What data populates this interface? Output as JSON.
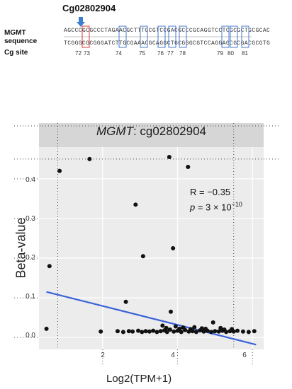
{
  "header": {
    "probe": "Cg02802904",
    "row_labels": [
      "MGMT",
      "sequence",
      "Cg site"
    ],
    "seq_top": "AGCCCGCGCCCTAGAACGCTTTGCGTCCGACGCCCGCAGGTCCTCGCGCTGCGCAC",
    "seq_bottom": "TCGGGCGCGGGATCTTGCGAAACGCAGGCTGCGGGCGTCCAGGAGCGCGACGCGTG",
    "cg_sites": [
      "72",
      "73",
      "74",
      "75",
      "76",
      "77",
      "78",
      "79",
      "80",
      "81"
    ]
  },
  "colors": {
    "arrow": "#3b7fd0",
    "box": "#4a7bd0",
    "highlight": "#d83a3a",
    "line": "#3b63d8",
    "point": "#111111"
  },
  "chart_data": {
    "type": "scatter",
    "title": "MGMT: cg02802904",
    "title_gene": "MGMT",
    "title_probe": ": cg02802904",
    "xlabel": "Log2(TPM+1)",
    "ylabel": "Beta-value",
    "xlim": [
      0.3,
      6.3
    ],
    "ylim": [
      -0.03,
      0.48
    ],
    "xticks": [
      "2",
      "4",
      "6"
    ],
    "xtick_values": [
      2,
      4,
      6
    ],
    "yticks": [
      "0.0",
      "0.1",
      "0.2",
      "0.3",
      "0.4"
    ],
    "ytick_values": [
      0.0,
      0.1,
      0.2,
      0.3,
      0.4
    ],
    "grid": true,
    "annotation_r": "R = −0.35",
    "annotation_p_label": "p",
    "annotation_p_value": " = 3 × 10",
    "annotation_p_exp": "−10",
    "points": [
      [
        0.85,
        0.42
      ],
      [
        1.65,
        0.45
      ],
      [
        3.78,
        0.455
      ],
      [
        4.28,
        0.43
      ],
      [
        2.88,
        0.335
      ],
      [
        0.58,
        0.18
      ],
      [
        3.08,
        0.205
      ],
      [
        3.88,
        0.225
      ],
      [
        2.62,
        0.09
      ],
      [
        3.82,
        0.065
      ],
      [
        0.5,
        0.022
      ],
      [
        1.95,
        0.015
      ],
      [
        2.4,
        0.016
      ],
      [
        2.55,
        0.014
      ],
      [
        2.7,
        0.016
      ],
      [
        2.8,
        0.015
      ],
      [
        2.95,
        0.017
      ],
      [
        3.05,
        0.014
      ],
      [
        3.15,
        0.016
      ],
      [
        3.25,
        0.015
      ],
      [
        3.35,
        0.017
      ],
      [
        3.45,
        0.014
      ],
      [
        3.55,
        0.016
      ],
      [
        3.65,
        0.018
      ],
      [
        3.72,
        0.014
      ],
      [
        3.8,
        0.02
      ],
      [
        3.9,
        0.015
      ],
      [
        4.0,
        0.017
      ],
      [
        4.1,
        0.014
      ],
      [
        4.2,
        0.019
      ],
      [
        4.3,
        0.015
      ],
      [
        4.4,
        0.016
      ],
      [
        4.5,
        0.014
      ],
      [
        4.6,
        0.018
      ],
      [
        4.7,
        0.015
      ],
      [
        4.8,
        0.017
      ],
      [
        4.9,
        0.014
      ],
      [
        5.0,
        0.016
      ],
      [
        5.1,
        0.015
      ],
      [
        5.2,
        0.017
      ],
      [
        5.3,
        0.014
      ],
      [
        5.4,
        0.016
      ],
      [
        5.5,
        0.015
      ],
      [
        5.6,
        0.017
      ],
      [
        5.75,
        0.015
      ],
      [
        5.9,
        0.014
      ],
      [
        6.05,
        0.016
      ],
      [
        3.6,
        0.03
      ],
      [
        3.95,
        0.028
      ],
      [
        4.15,
        0.025
      ],
      [
        4.45,
        0.026
      ],
      [
        4.75,
        0.022
      ],
      [
        4.95,
        0.038
      ],
      [
        5.15,
        0.024
      ],
      [
        5.45,
        0.021
      ],
      [
        3.7,
        0.024
      ],
      [
        4.05,
        0.022
      ],
      [
        4.35,
        0.021
      ],
      [
        4.65,
        0.023
      ],
      [
        5.25,
        0.02
      ]
    ],
    "regression": [
      [
        0.5,
        0.115
      ],
      [
        6.1,
        -0.018
      ]
    ]
  }
}
